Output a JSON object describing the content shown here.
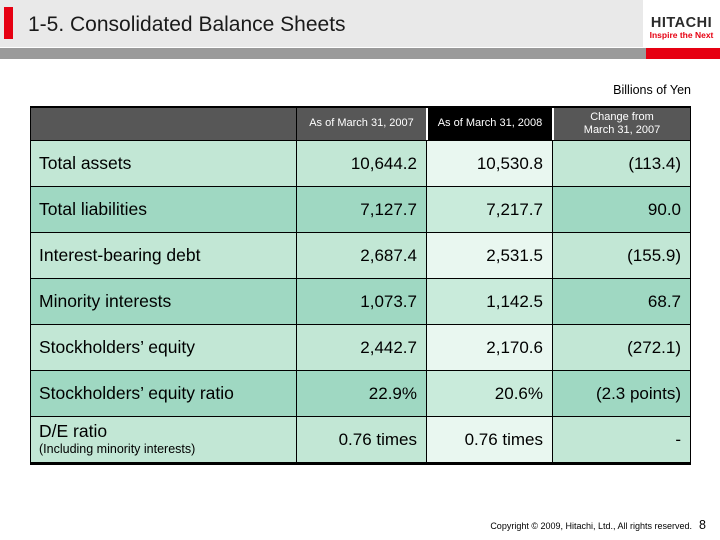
{
  "slide": {
    "title": "1-5. Consolidated Balance Sheets",
    "units_note": "Billions of Yen",
    "copyright": "Copyright © 2009, Hitachi, Ltd., All rights reserved.",
    "page_number": "8"
  },
  "logo": {
    "brand": "HITACHI",
    "tagline": "Inspire the Next"
  },
  "table": {
    "column_headers": {
      "label": "",
      "col2007": "As of March 31, 2007",
      "col2008": "As of March 31, 2008",
      "change": "Change from March 31, 2007"
    },
    "rows": [
      {
        "label": "Total assets",
        "v2007": "10,644.2",
        "v2008": "10,530.8",
        "change": "(113.4)"
      },
      {
        "label": "Total liabilities",
        "v2007": "7,127.7",
        "v2008": "7,217.7",
        "change": "90.0"
      },
      {
        "label": "Interest-bearing debt",
        "v2007": "2,687.4",
        "v2008": "2,531.5",
        "change": "(155.9)"
      },
      {
        "label": "Minority interests",
        "v2007": "1,073.7",
        "v2008": "1,142.5",
        "change": "68.7"
      },
      {
        "label": "Stockholders’ equity",
        "v2007": "2,442.7",
        "v2008": "2,170.6",
        "change": "(272.1)"
      },
      {
        "label": "Stockholders’ equity ratio",
        "v2007": "22.9%",
        "v2008": "20.6%",
        "change": "(2.3 points)"
      },
      {
        "label": "D/E ratio",
        "sublabel": "(Including minority interests)",
        "v2007": "0.76 times",
        "v2008": "0.76 times",
        "change": "-"
      }
    ]
  },
  "colors": {
    "accent-red": "#e60012",
    "header-bg": "#e9e9e9",
    "bar-gray": "#9a9a9a",
    "table-header-gray": "#575757",
    "table-header-black": "#000000",
    "row-light": "#c2e7d5",
    "row-light-highlight": "#e9f7f0",
    "row-dark": "#9fd8c2",
    "row-dark-highlight": "#c9ebdb"
  }
}
